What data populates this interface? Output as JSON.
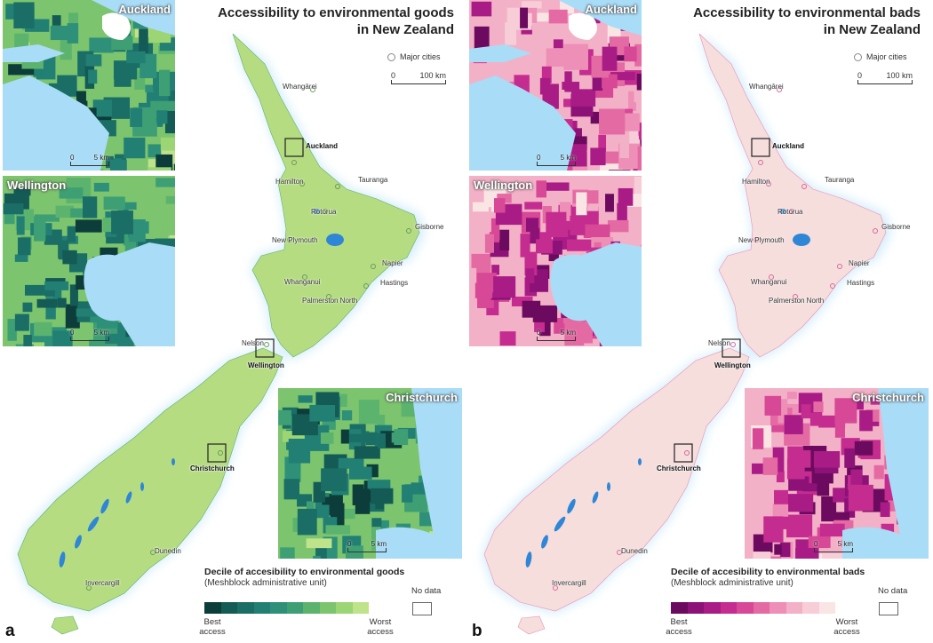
{
  "panels": [
    {
      "letter": "a",
      "title_line1": "Accessibility to environmental goods",
      "title_line2": "in New Zealand",
      "major_cities_label": "Major cities",
      "scale": {
        "start": "0",
        "end": "100 km"
      },
      "cities": {
        "whangarei": "Whangārei",
        "auckland": "Auckland",
        "hamilton": "Hamilton",
        "tauranga": "Tauranga",
        "rotorua": "Rotorua",
        "gisborne": "Gisborne",
        "new_plymouth": "New Plymouth",
        "napier": "Napier",
        "hastings": "Hastings",
        "whanganui": "Whanganui",
        "palmerston_north": "Palmerston North",
        "nelson": "Nelson",
        "wellington": "Wellington",
        "christchurch": "Christchurch",
        "dunedin": "Dunedin",
        "invercargill": "Invercargill"
      },
      "insets": {
        "auckland": {
          "label": "Auckland",
          "scale_start": "0",
          "scale_end": "5 km"
        },
        "wellington": {
          "label": "Wellington",
          "scale_start": "0",
          "scale_end": "5 km"
        },
        "christchurch": {
          "label": "Christchurch",
          "scale_start": "0",
          "scale_end": "5 km"
        }
      },
      "legend": {
        "title": "Decile of accesibility to environmental goods",
        "subtitle": "(Meshblock administrative unit)",
        "best": "Best access",
        "worst": "Worst access",
        "no_data": "No data"
      },
      "colors": {
        "deciles": [
          "#0d3d3a",
          "#145a55",
          "#1a6e66",
          "#227f74",
          "#2e9079",
          "#3f9f74",
          "#5cb36e",
          "#7cc46d",
          "#9cd574",
          "#bfe38a"
        ],
        "land": "#b6dc82",
        "water": "#a9dcf7",
        "lakes": "#2f86d6"
      }
    },
    {
      "letter": "b",
      "title_line1": "Accessibility to environmental bads",
      "title_line2": "in New Zealand",
      "major_cities_label": "Major cities",
      "scale": {
        "start": "0",
        "end": "100 km"
      },
      "cities": {
        "whangarei": "Whangārei",
        "auckland": "Auckland",
        "hamilton": "Hamilton",
        "tauranga": "Tauranga",
        "rotorua": "Rotorua",
        "gisborne": "Gisborne",
        "new_plymouth": "New Plymouth",
        "napier": "Napier",
        "hastings": "Hastings",
        "whanganui": "Whanganui",
        "palmerston_north": "Palmerston North",
        "nelson": "Nelson",
        "wellington": "Wellington",
        "christchurch": "Christchurch",
        "dunedin": "Dunedin",
        "invercargill": "Invercargill"
      },
      "insets": {
        "auckland": {
          "label": "Auckland",
          "scale_start": "0",
          "scale_end": "5 km"
        },
        "wellington": {
          "label": "Wellington",
          "scale_start": "0",
          "scale_end": "5 km"
        },
        "christchurch": {
          "label": "Christchurch",
          "scale_start": "0",
          "scale_end": "5 km"
        }
      },
      "legend": {
        "title": "Decile of accesibility to environmental bads",
        "subtitle": "(Meshblock administrative unit)",
        "best": "Best access",
        "worst": "Worst access",
        "no_data": "No data"
      },
      "colors": {
        "deciles": [
          "#6b0a5e",
          "#8c1277",
          "#a91c86",
          "#c42c8f",
          "#d74896",
          "#e46aa3",
          "#ed8fb6",
          "#f3b1c7",
          "#f7cdd7",
          "#fae5e5"
        ],
        "land": "#f6dedd",
        "water": "#a9dcf7",
        "lakes": "#2f86d6"
      }
    }
  ]
}
